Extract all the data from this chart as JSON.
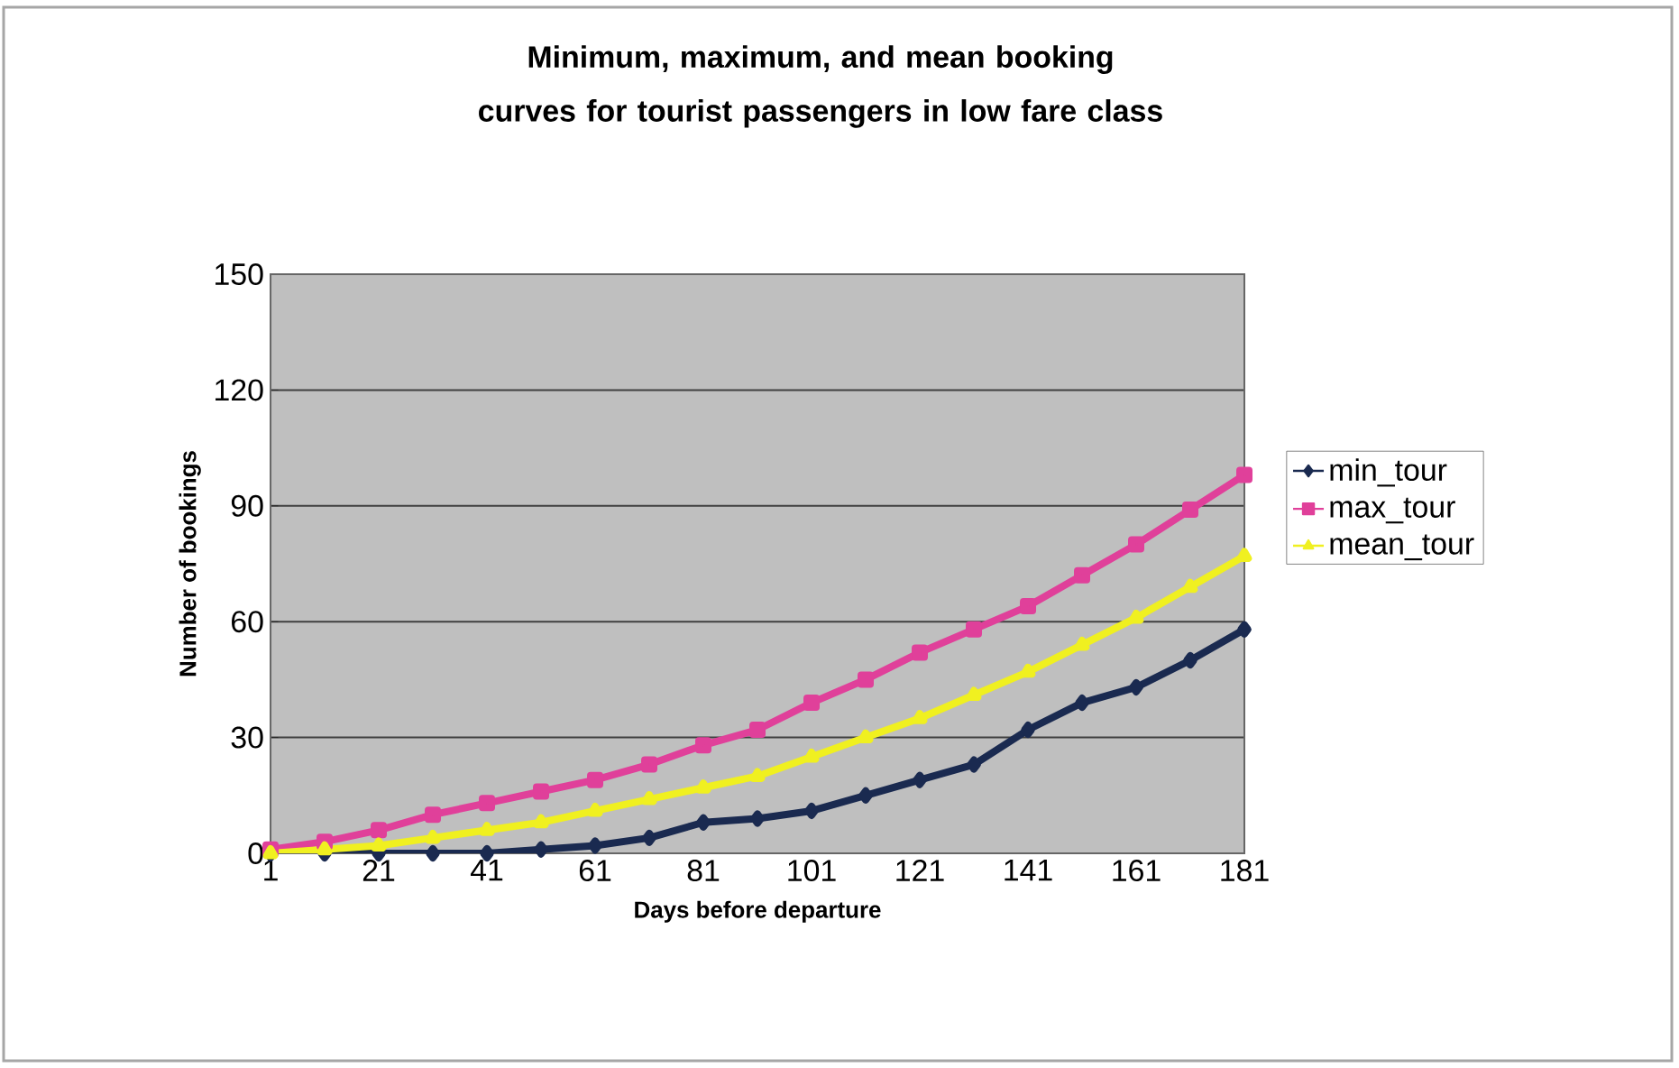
{
  "chart_data": {
    "type": "line",
    "title": "Minimum, maximum, and mean booking curves for tourist passengers in low fare class",
    "xlabel": "Days before departure",
    "ylabel": "Number of bookings",
    "x": [
      1,
      11,
      21,
      31,
      41,
      51,
      61,
      71,
      81,
      91,
      101,
      111,
      121,
      131,
      141,
      151,
      161,
      171,
      181
    ],
    "series": [
      {
        "name": "min_tour",
        "color": "#1a2a50",
        "marker": "diamond",
        "values": [
          0,
          0,
          0,
          0,
          0,
          1,
          2,
          4,
          8,
          9,
          11,
          15,
          19,
          23,
          32,
          39,
          43,
          50,
          58
        ]
      },
      {
        "name": "max_tour",
        "color": "#e0409a",
        "marker": "square",
        "values": [
          1,
          3,
          6,
          10,
          13,
          16,
          19,
          23,
          28,
          32,
          39,
          45,
          52,
          58,
          64,
          72,
          80,
          89,
          98
        ]
      },
      {
        "name": "mean_tour",
        "color": "#f0f020",
        "marker": "triangle",
        "values": [
          0,
          1,
          2,
          4,
          6,
          8,
          11,
          14,
          17,
          20,
          25,
          30,
          35,
          41,
          47,
          54,
          61,
          69,
          77
        ]
      }
    ],
    "xlim": [
      1,
      181
    ],
    "xticks": [
      1,
      21,
      41,
      61,
      81,
      101,
      121,
      141,
      161,
      181
    ],
    "ylim": [
      0,
      150
    ],
    "yticks": [
      0,
      30,
      60,
      90,
      120,
      150
    ],
    "grid": "y",
    "legend": "right"
  }
}
